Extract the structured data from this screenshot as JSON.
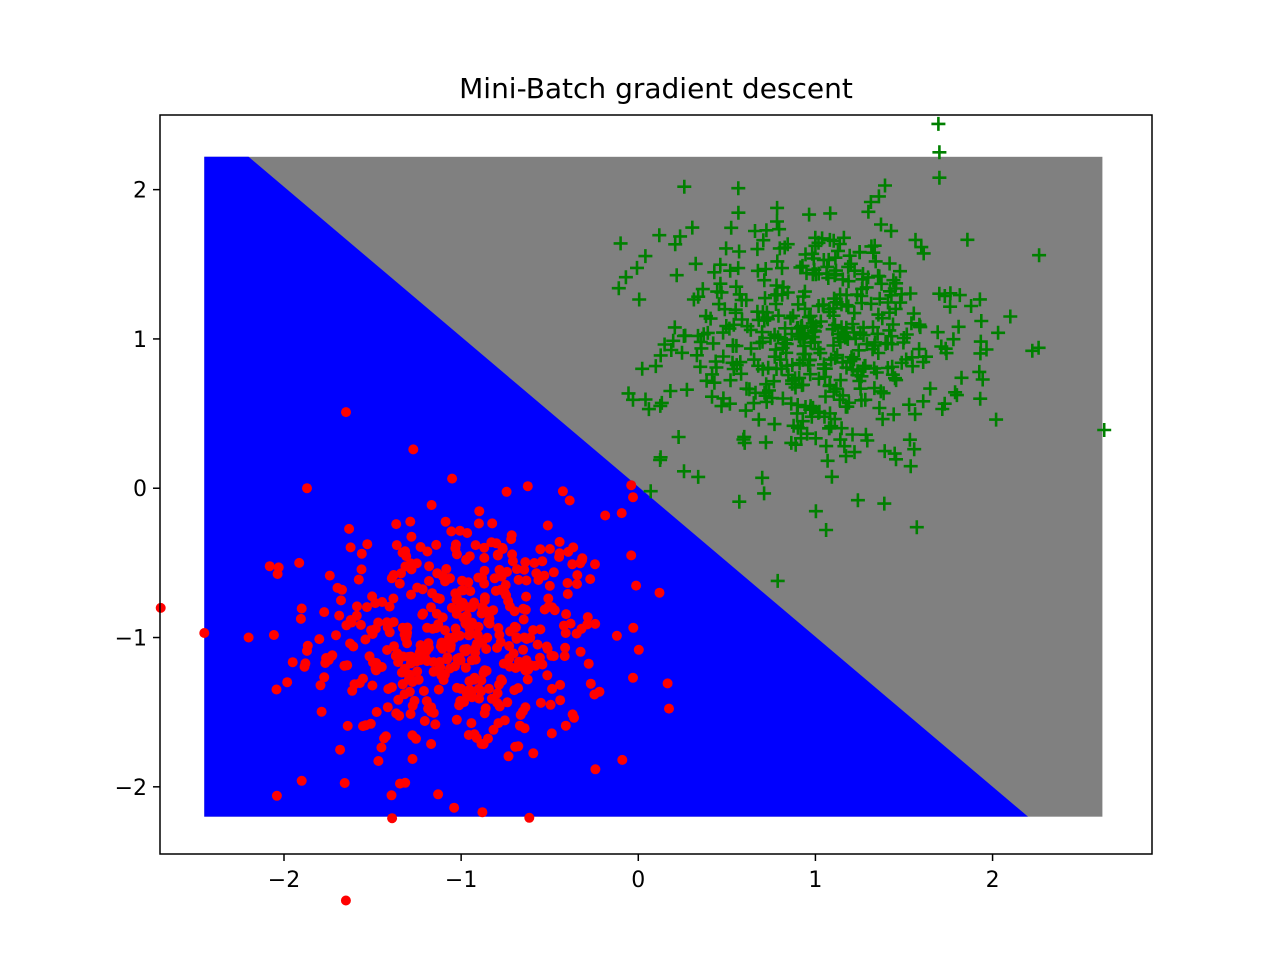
{
  "chart_data": {
    "type": "scatter",
    "title": "Mini-Batch gradient descent",
    "xlabel": "",
    "ylabel": "",
    "xlim": [
      -2.7,
      2.9
    ],
    "ylim": [
      -2.45,
      2.5
    ],
    "x_ticks": [
      -2,
      -1,
      0,
      1,
      2
    ],
    "y_ticks": [
      -2,
      -1,
      0,
      1,
      2
    ],
    "x_tick_labels": [
      "−2",
      "−1",
      "0",
      "1",
      "2"
    ],
    "y_tick_labels": [
      "−2",
      "−1",
      "0",
      "1",
      "2"
    ],
    "grid": false,
    "decision_regions": {
      "extent": {
        "x": [
          -2.45,
          2.62
        ],
        "y": [
          -2.2,
          2.22
        ]
      },
      "boundary_line": [
        [
          -2.2,
          2.22
        ],
        [
          2.2,
          -2.2
        ]
      ],
      "colors": {
        "class_0": "#0000ff",
        "class_1": "#808080"
      }
    },
    "series": [
      {
        "marker": "dot",
        "color": "#ff0000",
        "center": [
          -1.0,
          -1.0
        ],
        "spread": 0.42,
        "count": 500,
        "points": [
          [
            -2.45,
            -0.97
          ],
          [
            -2.2,
            -1.0
          ],
          [
            -1.65,
            0.51
          ],
          [
            -1.27,
            0.26
          ],
          [
            -1.87,
            0.0
          ],
          [
            -1.39,
            -2.21
          ],
          [
            -2.04,
            -2.06
          ],
          [
            -1.13,
            -2.05
          ],
          [
            -1.04,
            -2.14
          ],
          [
            -0.88,
            -2.17
          ],
          [
            -0.09,
            -1.82
          ],
          [
            -0.04,
            -0.45
          ],
          [
            -0.03,
            -0.06
          ],
          [
            0.12,
            -0.7
          ],
          [
            -0.03,
            -1.27
          ],
          [
            -0.04,
            0.02
          ],
          [
            -2.03,
            -0.53
          ],
          [
            -1.9,
            -1.96
          ]
        ]
      },
      {
        "marker": "plus",
        "color": "#008000",
        "center": [
          1.0,
          1.0
        ],
        "spread": 0.42,
        "count": 500,
        "points": [
          [
            1.7,
            2.25
          ],
          [
            2.63,
            0.39
          ],
          [
            1.7,
            2.08
          ],
          [
            0.07,
            -0.02
          ],
          [
            1.06,
            -0.28
          ],
          [
            0.57,
            -0.09
          ],
          [
            -0.1,
            1.64
          ],
          [
            -0.11,
            1.34
          ],
          [
            0.26,
            2.02
          ],
          [
            2.1,
            1.15
          ],
          [
            2.02,
            0.46
          ],
          [
            1.24,
            -0.08
          ],
          [
            0.06,
            0.53
          ],
          [
            1.93,
            0.6
          ]
        ]
      }
    ]
  }
}
